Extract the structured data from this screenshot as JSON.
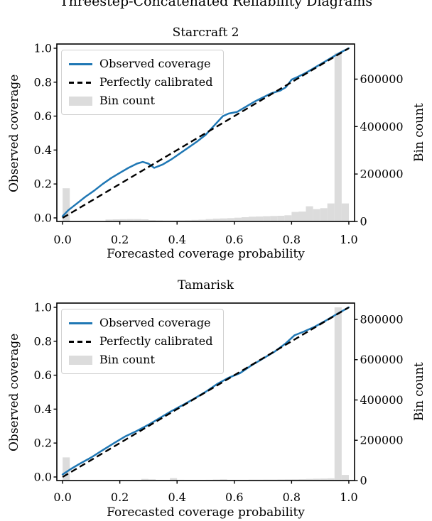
{
  "figure": {
    "main_title": "Threestep-Concatenated Reliability Diagrams",
    "colors": {
      "observed_line": "#1f77b4",
      "calibrated_line": "#000000",
      "bin_fill": "#dcdcdc",
      "legend_border": "#d0d0d0",
      "axis_color": "#000000",
      "background": "#ffffff"
    }
  },
  "chart_data": [
    {
      "type": "line+histogram",
      "title": "Starcraft 2",
      "xlabel": "Forecasted coverage probability",
      "ylabel_left": "Observed coverage",
      "ylabel_right": "Bin count",
      "xlim": [
        -0.02,
        1.02
      ],
      "ylim_left": [
        -0.021,
        1.025
      ],
      "ylim_right": [
        0,
        748000
      ],
      "xticks": [
        0.0,
        0.2,
        0.4,
        0.6,
        0.8,
        1.0
      ],
      "yticks_left": [
        0.0,
        0.2,
        0.4,
        0.6,
        0.8,
        1.0
      ],
      "yticks_right": [
        0,
        200000,
        400000,
        600000
      ],
      "grid": false,
      "legend_position": "upper left",
      "legend": [
        "Observed coverage",
        "Perfectly calibrated",
        "Bin count"
      ],
      "series": [
        {
          "name": "Observed coverage",
          "x": [
            0.0,
            0.02,
            0.05,
            0.08,
            0.11,
            0.14,
            0.17,
            0.2,
            0.23,
            0.26,
            0.28,
            0.3,
            0.32,
            0.35,
            0.38,
            0.41,
            0.44,
            0.47,
            0.5,
            0.53,
            0.56,
            0.58,
            0.61,
            0.64,
            0.67,
            0.7,
            0.73,
            0.76,
            0.78,
            0.8,
            0.82,
            0.85,
            0.88,
            0.91,
            0.94,
            0.97,
            1.0
          ],
          "y": [
            0.01,
            0.045,
            0.085,
            0.125,
            0.16,
            0.2,
            0.235,
            0.265,
            0.295,
            0.32,
            0.33,
            0.32,
            0.295,
            0.315,
            0.345,
            0.38,
            0.415,
            0.45,
            0.49,
            0.545,
            0.6,
            0.615,
            0.625,
            0.655,
            0.685,
            0.71,
            0.735,
            0.75,
            0.77,
            0.815,
            0.83,
            0.855,
            0.885,
            0.915,
            0.945,
            0.975,
            1.0
          ]
        },
        {
          "name": "Perfectly calibrated",
          "x": [
            0,
            1
          ],
          "y": [
            0,
            1
          ]
        }
      ],
      "bins": {
        "start": 0.0,
        "width": 0.025,
        "counts": [
          140000,
          1000,
          500,
          500,
          500,
          1000,
          8000,
          9000,
          9500,
          10000,
          10000,
          9000,
          6000,
          5000,
          4500,
          4500,
          5000,
          5500,
          6500,
          7500,
          10000,
          12000,
          13000,
          14000,
          16000,
          18000,
          20000,
          21000,
          22000,
          23000,
          24000,
          26000,
          40000,
          42000,
          64000,
          52000,
          56000,
          76000,
          710000,
          76000
        ]
      }
    },
    {
      "type": "line+histogram",
      "title": "Tamarisk",
      "xlabel": "Forecasted coverage probability",
      "ylabel_left": "Observed coverage",
      "ylabel_right": "Bin count",
      "xlim": [
        -0.02,
        1.02
      ],
      "ylim_left": [
        -0.021,
        1.025
      ],
      "ylim_right": [
        0,
        881000
      ],
      "xticks": [
        0.0,
        0.2,
        0.4,
        0.6,
        0.8,
        1.0
      ],
      "yticks_left": [
        0.0,
        0.2,
        0.4,
        0.6,
        0.8,
        1.0
      ],
      "yticks_right": [
        0,
        200000,
        400000,
        600000,
        800000
      ],
      "grid": false,
      "legend_position": "upper left",
      "legend": [
        "Observed coverage",
        "Perfectly calibrated",
        "Bin count"
      ],
      "series": [
        {
          "name": "Observed coverage",
          "x": [
            0.0,
            0.03,
            0.06,
            0.1,
            0.14,
            0.18,
            0.22,
            0.26,
            0.3,
            0.34,
            0.38,
            0.42,
            0.46,
            0.5,
            0.54,
            0.58,
            0.62,
            0.66,
            0.7,
            0.74,
            0.78,
            0.81,
            0.84,
            0.88,
            0.92,
            0.96,
            1.0
          ],
          "y": [
            0.015,
            0.048,
            0.078,
            0.115,
            0.158,
            0.2,
            0.24,
            0.272,
            0.308,
            0.348,
            0.388,
            0.424,
            0.462,
            0.502,
            0.548,
            0.585,
            0.612,
            0.658,
            0.698,
            0.738,
            0.788,
            0.835,
            0.855,
            0.885,
            0.922,
            0.962,
            1.0
          ]
        },
        {
          "name": "Perfectly calibrated",
          "x": [
            0,
            1
          ],
          "y": [
            0,
            1
          ]
        }
      ],
      "bins": {
        "start": 0.0,
        "width": 0.025,
        "counts": [
          115000,
          2000,
          1500,
          1500,
          1500,
          2000,
          2500,
          3000,
          3000,
          3000,
          3500,
          8000,
          6000,
          3500,
          3500,
          12000,
          4000,
          3500,
          3500,
          3500,
          4000,
          5000,
          6000,
          4000,
          4000,
          4000,
          4500,
          4500,
          5000,
          5000,
          5500,
          6000,
          6500,
          7000,
          8000,
          9000,
          10000,
          11000,
          860000,
          28000
        ]
      }
    }
  ]
}
